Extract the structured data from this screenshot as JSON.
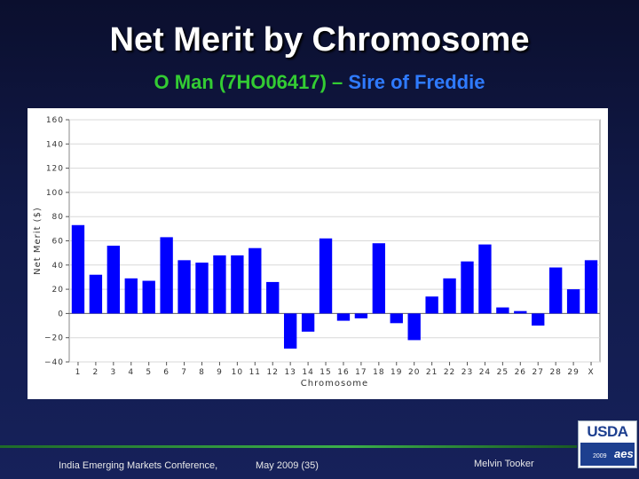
{
  "slide": {
    "title": "Net Merit by Chromosome",
    "subtitle_part1": "O Man (7HO06417) –",
    "subtitle_part2": " Sire of Freddie"
  },
  "footer": {
    "conference": "India Emerging Markets Conference,",
    "date_page": "May  2009 (35)",
    "author": "Melvin Tooker"
  },
  "logo": {
    "name": "USDA",
    "year": "2009",
    "mark": "aes"
  },
  "chart_data": {
    "type": "bar",
    "xlabel": "Chromosome",
    "ylabel": "Net Merit ($)",
    "ylim": [
      -40,
      160
    ],
    "yticks": [
      -40,
      -20,
      0,
      20,
      40,
      60,
      80,
      100,
      120,
      140,
      160
    ],
    "grid": true,
    "bar_color": "#0000ff",
    "categories": [
      "1",
      "2",
      "3",
      "4",
      "5",
      "6",
      "7",
      "8",
      "9",
      "10",
      "11",
      "12",
      "13",
      "14",
      "15",
      "16",
      "17",
      "18",
      "19",
      "20",
      "21",
      "22",
      "23",
      "24",
      "25",
      "26",
      "27",
      "28",
      "29",
      "X"
    ],
    "values": [
      73,
      32,
      56,
      29,
      27,
      63,
      44,
      42,
      48,
      48,
      54,
      26,
      -29,
      -15,
      62,
      -6,
      -4,
      58,
      -8,
      -22,
      14,
      29,
      43,
      57,
      5,
      2,
      -10,
      38,
      20,
      44
    ]
  }
}
